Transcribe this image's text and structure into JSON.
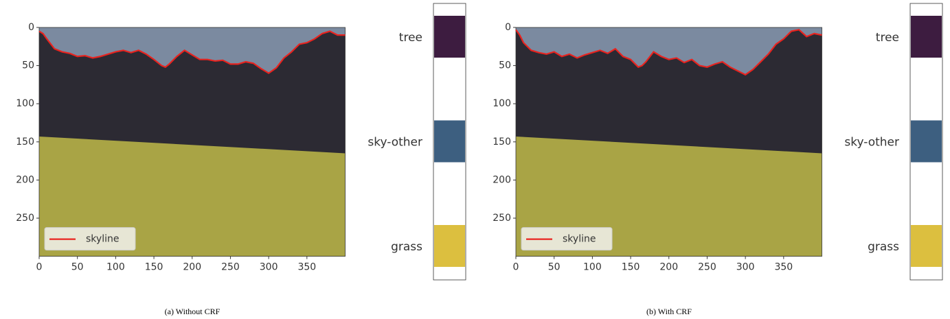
{
  "chart_data": [
    {
      "type": "line",
      "caption": "(a) Without CRF",
      "xlim": [
        0,
        400
      ],
      "ylim": [
        300,
        0
      ],
      "xticks": [
        0,
        50,
        100,
        150,
        200,
        250,
        300,
        350
      ],
      "yticks": [
        0,
        50,
        100,
        150,
        200,
        250
      ],
      "legend": "lower left",
      "x": [
        0,
        5,
        10,
        20,
        30,
        40,
        50,
        60,
        70,
        80,
        90,
        100,
        110,
        120,
        130,
        140,
        150,
        160,
        165,
        170,
        180,
        190,
        200,
        210,
        220,
        230,
        240,
        250,
        260,
        270,
        280,
        290,
        300,
        310,
        320,
        330,
        340,
        350,
        360,
        370,
        380,
        390,
        400
      ],
      "series": [
        {
          "name": "skyline",
          "color": "#e8231f",
          "values": [
            5,
            8,
            15,
            28,
            32,
            34,
            38,
            37,
            40,
            38,
            35,
            32,
            30,
            33,
            30,
            35,
            42,
            50,
            52,
            48,
            38,
            30,
            36,
            42,
            42,
            44,
            43,
            48,
            48,
            45,
            47,
            54,
            60,
            53,
            40,
            32,
            22,
            20,
            15,
            8,
            5,
            10,
            10
          ]
        }
      ],
      "colorbar": {
        "labels": [
          "tree",
          "sky-other",
          "grass"
        ],
        "colors": [
          "#3d1c40",
          "#3d5f80",
          "#dcbf3f"
        ]
      }
    },
    {
      "type": "line",
      "caption": "(b) With CRF",
      "xlim": [
        0,
        400
      ],
      "ylim": [
        300,
        0
      ],
      "xticks": [
        0,
        50,
        100,
        150,
        200,
        250,
        300,
        350
      ],
      "yticks": [
        0,
        50,
        100,
        150,
        200,
        250
      ],
      "legend": "lower left",
      "x": [
        0,
        5,
        10,
        20,
        30,
        40,
        50,
        60,
        70,
        80,
        90,
        100,
        110,
        120,
        130,
        140,
        150,
        160,
        165,
        170,
        180,
        190,
        200,
        210,
        220,
        230,
        240,
        250,
        260,
        270,
        280,
        290,
        300,
        310,
        320,
        330,
        340,
        350,
        360,
        370,
        380,
        390,
        400
      ],
      "series": [
        {
          "name": "skyline",
          "color": "#e8231f",
          "values": [
            3,
            10,
            20,
            30,
            33,
            35,
            32,
            38,
            35,
            40,
            36,
            33,
            30,
            34,
            28,
            38,
            42,
            52,
            50,
            45,
            32,
            38,
            42,
            40,
            46,
            42,
            50,
            52,
            48,
            45,
            52,
            57,
            62,
            55,
            45,
            35,
            22,
            15,
            5,
            3,
            12,
            8,
            10
          ]
        }
      ],
      "colorbar": {
        "labels": [
          "tree",
          "sky-other",
          "grass"
        ],
        "colors": [
          "#3d1c40",
          "#3d5f80",
          "#dcbf3f"
        ]
      }
    }
  ]
}
